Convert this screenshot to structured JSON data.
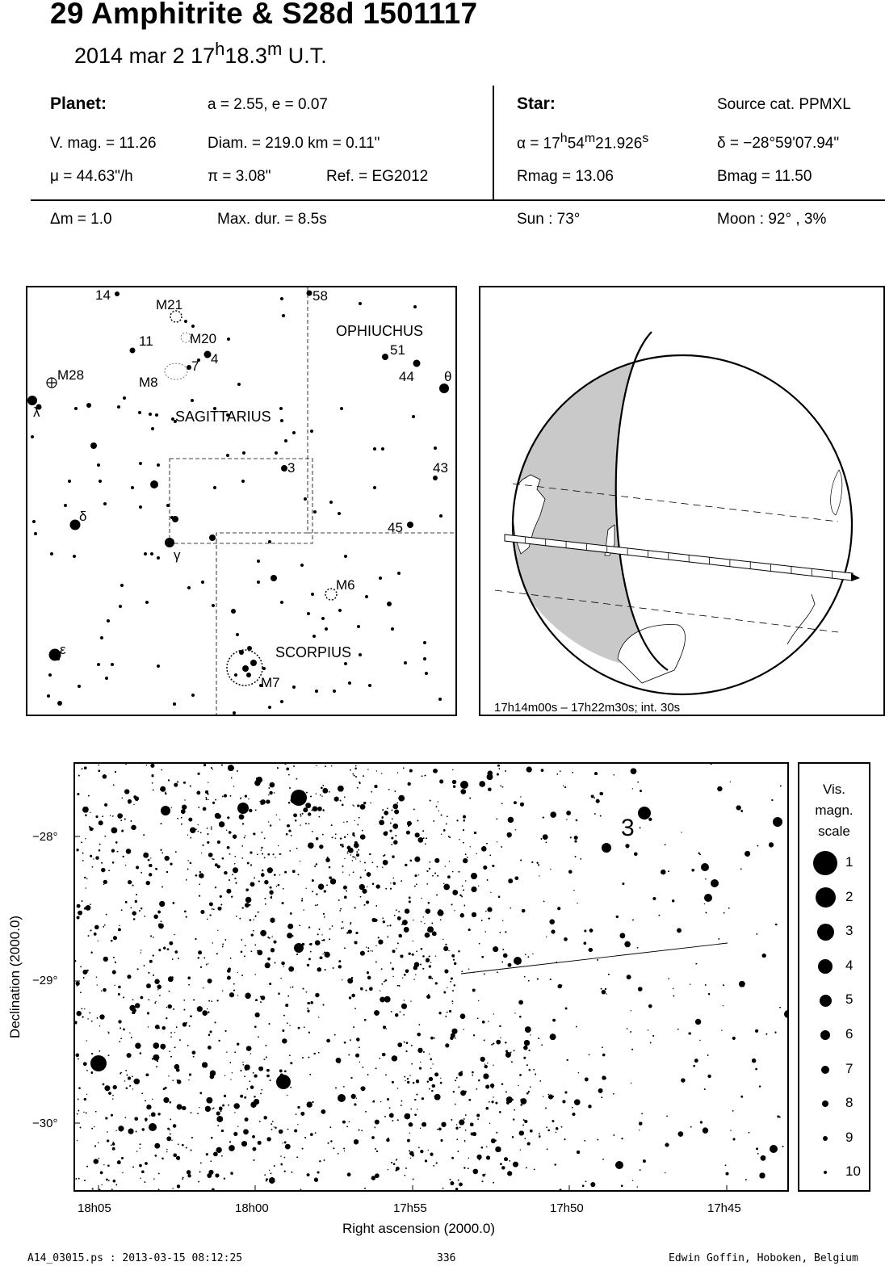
{
  "header": {
    "title": "29 Amphitrite  &  S28d 1501117",
    "date_prefix": "2014 mar  2  17",
    "h_sup": "h",
    "minutes": "18.3",
    "m_sup": "m",
    "ut": " U.T."
  },
  "planet": {
    "heading": "Planet:",
    "orbit": "a = 2.55, e = 0.07",
    "vmag": "V. mag. = 11.26",
    "diam": "Diam. = 219.0 km = 0.11\"",
    "mu": "μ =  44.63\"/h",
    "pi": "π =  3.08\"",
    "ref": "Ref. = EG2012"
  },
  "star": {
    "heading": "Star:",
    "source": "Source cat.  PPMXL",
    "ra_prefix": "α = 17",
    "ra_h": "h",
    "ra_mid": "54",
    "ra_m": "m",
    "ra_sec": "21.926",
    "ra_s": "s",
    "dec": "δ = −28°59'07.94\"",
    "rmag": "Rmag = 13.06",
    "bmag": "Bmag = 11.50"
  },
  "event": {
    "dm": "Δm = 1.0",
    "maxdur": "Max. dur. = 8.5s",
    "sun": "Sun :  73°",
    "moon": "Moon :  92° ,  3%"
  },
  "finder": {
    "constellations": [
      "OPHIUCHUS",
      "SAGITTARIUS",
      "SCORPIUS"
    ],
    "labels": [
      "14",
      "58",
      "M21",
      "M20",
      "11",
      "4",
      "7",
      "M8",
      "M28",
      "51",
      "44",
      "θ",
      "λ",
      "3",
      "43",
      "δ",
      "45",
      "γ",
      "M6",
      "ε",
      "M7"
    ]
  },
  "globe": {
    "caption": "17h14m00s – 17h22m30s; int. 30s"
  },
  "chart": {
    "ylabel": "Declination (2000.0)",
    "xlabel": "Right ascension (2000.0)",
    "yticks": [
      "−28°",
      "−29°",
      "−30°"
    ],
    "xticks": [
      "18h05",
      "18h00",
      "17h55",
      "17h50",
      "17h45"
    ],
    "star_label": "3"
  },
  "legend": {
    "title": [
      "Vis.",
      "magn.",
      "scale"
    ],
    "items": [
      "1",
      "2",
      "3",
      "4",
      "5",
      "6",
      "7",
      "8",
      "9",
      "10"
    ]
  },
  "footer": {
    "file": "A14_03015.ps : 2013-03-15 08:12:25",
    "page": "336",
    "author": "Edwin Goffin, Hoboken, Belgium"
  }
}
